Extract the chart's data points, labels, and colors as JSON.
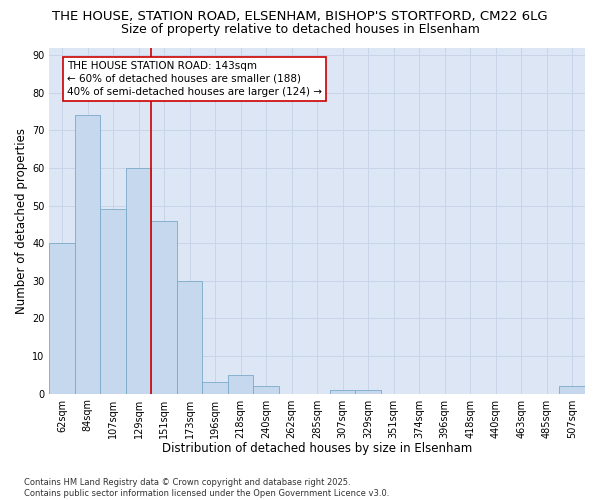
{
  "title_line1": "THE HOUSE, STATION ROAD, ELSENHAM, BISHOP'S STORTFORD, CM22 6LG",
  "title_line2": "Size of property relative to detached houses in Elsenham",
  "xlabel": "Distribution of detached houses by size in Elsenham",
  "ylabel": "Number of detached properties",
  "categories": [
    "62sqm",
    "84sqm",
    "107sqm",
    "129sqm",
    "151sqm",
    "173sqm",
    "196sqm",
    "218sqm",
    "240sqm",
    "262sqm",
    "285sqm",
    "307sqm",
    "329sqm",
    "351sqm",
    "374sqm",
    "396sqm",
    "418sqm",
    "440sqm",
    "463sqm",
    "485sqm",
    "507sqm"
  ],
  "values": [
    40,
    74,
    49,
    60,
    46,
    30,
    3,
    5,
    2,
    0,
    0,
    1,
    1,
    0,
    0,
    0,
    0,
    0,
    0,
    0,
    2
  ],
  "bar_color": "#c5d8ee",
  "bar_edge_color": "#7aaac8",
  "vline_x": 3.5,
  "vline_color": "#cc0000",
  "annotation_text": "THE HOUSE STATION ROAD: 143sqm\n← 60% of detached houses are smaller (188)\n40% of semi-detached houses are larger (124) →",
  "annotation_box_color": "#ffffff",
  "annotation_box_edge": "#cc0000",
  "ylim": [
    0,
    92
  ],
  "yticks": [
    0,
    10,
    20,
    30,
    40,
    50,
    60,
    70,
    80,
    90
  ],
  "grid_color": "#c8d4e8",
  "bg_color": "#dce6f5",
  "footnote": "Contains HM Land Registry data © Crown copyright and database right 2025.\nContains public sector information licensed under the Open Government Licence v3.0.",
  "title_fontsize": 9.5,
  "subtitle_fontsize": 9,
  "axis_label_fontsize": 8.5,
  "tick_fontsize": 7,
  "annotation_fontsize": 7.5,
  "footnote_fontsize": 6
}
